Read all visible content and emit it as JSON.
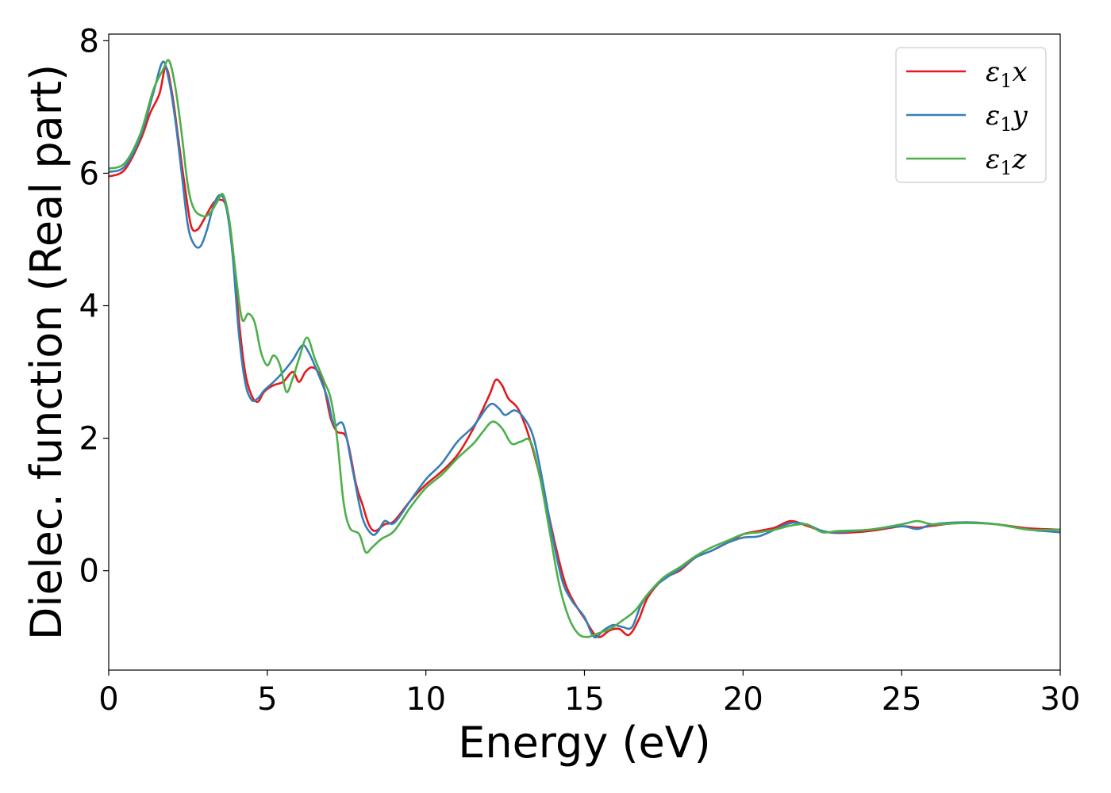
{
  "chart_data": {
    "type": "line",
    "xlabel": "Energy (eV)",
    "ylabel": "Dielec. function (Real part)",
    "xlim": [
      0,
      30
    ],
    "ylim": [
      -1.5,
      8.1
    ],
    "xticks": [
      0,
      5,
      10,
      15,
      20,
      25,
      30
    ],
    "yticks": [
      0,
      2,
      4,
      6,
      8
    ],
    "grid": false,
    "legend_position": "top-right",
    "series": [
      {
        "name": "ε1x",
        "label_parts": [
          "ε",
          "1",
          "x"
        ],
        "color": "#e41a1c",
        "points": [
          [
            0,
            5.95
          ],
          [
            0.5,
            6.05
          ],
          [
            1.0,
            6.5
          ],
          [
            1.3,
            6.9
          ],
          [
            1.6,
            7.2
          ],
          [
            1.8,
            7.6
          ],
          [
            2.0,
            7.2
          ],
          [
            2.2,
            6.5
          ],
          [
            2.4,
            5.8
          ],
          [
            2.6,
            5.2
          ],
          [
            2.8,
            5.15
          ],
          [
            3.0,
            5.3
          ],
          [
            3.3,
            5.55
          ],
          [
            3.5,
            5.6
          ],
          [
            3.7,
            5.5
          ],
          [
            3.9,
            4.9
          ],
          [
            4.1,
            3.8
          ],
          [
            4.3,
            3.0
          ],
          [
            4.5,
            2.65
          ],
          [
            4.7,
            2.55
          ],
          [
            4.9,
            2.7
          ],
          [
            5.2,
            2.8
          ],
          [
            5.5,
            2.85
          ],
          [
            5.8,
            3.0
          ],
          [
            6.0,
            2.85
          ],
          [
            6.2,
            3.0
          ],
          [
            6.4,
            3.07
          ],
          [
            6.6,
            3.0
          ],
          [
            6.8,
            2.75
          ],
          [
            7.0,
            2.3
          ],
          [
            7.2,
            2.1
          ],
          [
            7.5,
            2.0
          ],
          [
            7.8,
            1.3
          ],
          [
            8.0,
            1.0
          ],
          [
            8.2,
            0.7
          ],
          [
            8.4,
            0.6
          ],
          [
            8.7,
            0.7
          ],
          [
            9.0,
            0.75
          ],
          [
            9.5,
            1.05
          ],
          [
            10.0,
            1.3
          ],
          [
            10.5,
            1.5
          ],
          [
            11.0,
            1.75
          ],
          [
            11.5,
            2.15
          ],
          [
            12.0,
            2.65
          ],
          [
            12.2,
            2.88
          ],
          [
            12.4,
            2.8
          ],
          [
            12.6,
            2.6
          ],
          [
            12.9,
            2.45
          ],
          [
            13.2,
            2.1
          ],
          [
            13.5,
            1.6
          ],
          [
            13.8,
            1.0
          ],
          [
            14.1,
            0.35
          ],
          [
            14.4,
            -0.2
          ],
          [
            14.7,
            -0.5
          ],
          [
            15.0,
            -0.72
          ],
          [
            15.3,
            -0.95
          ],
          [
            15.5,
            -1.0
          ],
          [
            15.8,
            -0.9
          ],
          [
            16.1,
            -0.88
          ],
          [
            16.4,
            -0.97
          ],
          [
            16.7,
            -0.75
          ],
          [
            17.0,
            -0.4
          ],
          [
            17.5,
            -0.12
          ],
          [
            18.0,
            0.0
          ],
          [
            18.5,
            0.2
          ],
          [
            19.0,
            0.3
          ],
          [
            19.5,
            0.42
          ],
          [
            20.0,
            0.55
          ],
          [
            20.5,
            0.6
          ],
          [
            21.0,
            0.65
          ],
          [
            21.5,
            0.75
          ],
          [
            22.0,
            0.68
          ],
          [
            22.5,
            0.6
          ],
          [
            23.0,
            0.57
          ],
          [
            24.0,
            0.6
          ],
          [
            25.0,
            0.67
          ],
          [
            25.5,
            0.65
          ],
          [
            26.0,
            0.68
          ],
          [
            27.0,
            0.73
          ],
          [
            28.0,
            0.7
          ],
          [
            29.0,
            0.64
          ],
          [
            30.0,
            0.62
          ]
        ]
      },
      {
        "name": "ε1y",
        "label_parts": [
          "ε",
          "1",
          "y"
        ],
        "color": "#377eb8",
        "points": [
          [
            0,
            6.02
          ],
          [
            0.5,
            6.1
          ],
          [
            1.0,
            6.55
          ],
          [
            1.4,
            7.2
          ],
          [
            1.7,
            7.68
          ],
          [
            1.9,
            7.4
          ],
          [
            2.1,
            6.8
          ],
          [
            2.3,
            6.0
          ],
          [
            2.5,
            5.2
          ],
          [
            2.7,
            4.92
          ],
          [
            2.9,
            4.9
          ],
          [
            3.1,
            5.15
          ],
          [
            3.3,
            5.5
          ],
          [
            3.5,
            5.67
          ],
          [
            3.7,
            5.5
          ],
          [
            3.9,
            4.8
          ],
          [
            4.1,
            3.6
          ],
          [
            4.3,
            2.85
          ],
          [
            4.5,
            2.58
          ],
          [
            4.7,
            2.6
          ],
          [
            4.9,
            2.72
          ],
          [
            5.2,
            2.85
          ],
          [
            5.5,
            3.0
          ],
          [
            5.8,
            3.18
          ],
          [
            6.1,
            3.4
          ],
          [
            6.3,
            3.3
          ],
          [
            6.6,
            2.98
          ],
          [
            6.9,
            2.6
          ],
          [
            7.1,
            2.2
          ],
          [
            7.4,
            2.2
          ],
          [
            7.7,
            1.5
          ],
          [
            8.0,
            0.8
          ],
          [
            8.3,
            0.55
          ],
          [
            8.5,
            0.6
          ],
          [
            8.7,
            0.75
          ],
          [
            9.0,
            0.72
          ],
          [
            9.5,
            1.05
          ],
          [
            10.0,
            1.38
          ],
          [
            10.5,
            1.62
          ],
          [
            11.0,
            1.95
          ],
          [
            11.5,
            2.18
          ],
          [
            11.9,
            2.45
          ],
          [
            12.1,
            2.52
          ],
          [
            12.3,
            2.45
          ],
          [
            12.5,
            2.35
          ],
          [
            12.8,
            2.42
          ],
          [
            13.1,
            2.3
          ],
          [
            13.4,
            2.0
          ],
          [
            13.7,
            1.3
          ],
          [
            14.0,
            0.5
          ],
          [
            14.3,
            -0.15
          ],
          [
            14.6,
            -0.45
          ],
          [
            15.0,
            -0.7
          ],
          [
            15.3,
            -1.0
          ],
          [
            15.6,
            -0.9
          ],
          [
            15.9,
            -0.82
          ],
          [
            16.2,
            -0.85
          ],
          [
            16.5,
            -0.85
          ],
          [
            16.8,
            -0.5
          ],
          [
            17.2,
            -0.25
          ],
          [
            17.6,
            -0.1
          ],
          [
            18.0,
            0.02
          ],
          [
            18.5,
            0.2
          ],
          [
            19.0,
            0.3
          ],
          [
            19.5,
            0.42
          ],
          [
            20.0,
            0.5
          ],
          [
            20.5,
            0.52
          ],
          [
            21.0,
            0.62
          ],
          [
            21.5,
            0.72
          ],
          [
            22.0,
            0.7
          ],
          [
            22.5,
            0.6
          ],
          [
            23.0,
            0.58
          ],
          [
            24.0,
            0.62
          ],
          [
            25.0,
            0.67
          ],
          [
            25.5,
            0.63
          ],
          [
            26.0,
            0.7
          ],
          [
            27.0,
            0.73
          ],
          [
            28.0,
            0.7
          ],
          [
            29.0,
            0.62
          ],
          [
            30.0,
            0.58
          ]
        ]
      },
      {
        "name": "ε1z",
        "label_parts": [
          "ε",
          "1",
          "z"
        ],
        "color": "#4daf4a",
        "points": [
          [
            0,
            6.07
          ],
          [
            0.5,
            6.15
          ],
          [
            1.0,
            6.6
          ],
          [
            1.4,
            7.25
          ],
          [
            1.7,
            7.55
          ],
          [
            1.9,
            7.7
          ],
          [
            2.1,
            7.3
          ],
          [
            2.3,
            6.6
          ],
          [
            2.5,
            5.8
          ],
          [
            2.7,
            5.45
          ],
          [
            3.0,
            5.35
          ],
          [
            3.2,
            5.4
          ],
          [
            3.4,
            5.55
          ],
          [
            3.6,
            5.68
          ],
          [
            3.8,
            5.3
          ],
          [
            4.0,
            4.5
          ],
          [
            4.2,
            3.8
          ],
          [
            4.4,
            3.88
          ],
          [
            4.6,
            3.75
          ],
          [
            4.8,
            3.3
          ],
          [
            5.0,
            3.1
          ],
          [
            5.2,
            3.25
          ],
          [
            5.4,
            3.1
          ],
          [
            5.6,
            2.7
          ],
          [
            5.8,
            2.9
          ],
          [
            6.0,
            3.2
          ],
          [
            6.25,
            3.52
          ],
          [
            6.5,
            3.2
          ],
          [
            6.8,
            2.85
          ],
          [
            7.0,
            2.6
          ],
          [
            7.2,
            2.0
          ],
          [
            7.4,
            1.05
          ],
          [
            7.6,
            0.65
          ],
          [
            7.9,
            0.55
          ],
          [
            8.1,
            0.28
          ],
          [
            8.3,
            0.35
          ],
          [
            8.6,
            0.48
          ],
          [
            9.0,
            0.6
          ],
          [
            9.5,
            0.95
          ],
          [
            10.0,
            1.25
          ],
          [
            10.5,
            1.45
          ],
          [
            11.0,
            1.7
          ],
          [
            11.5,
            1.92
          ],
          [
            11.8,
            2.1
          ],
          [
            12.1,
            2.25
          ],
          [
            12.4,
            2.15
          ],
          [
            12.7,
            1.92
          ],
          [
            13.0,
            1.95
          ],
          [
            13.3,
            1.95
          ],
          [
            13.6,
            1.4
          ],
          [
            13.9,
            0.6
          ],
          [
            14.2,
            -0.2
          ],
          [
            14.5,
            -0.7
          ],
          [
            14.8,
            -0.95
          ],
          [
            15.1,
            -1.0
          ],
          [
            15.4,
            -0.95
          ],
          [
            15.8,
            -0.88
          ],
          [
            16.2,
            -0.75
          ],
          [
            16.6,
            -0.6
          ],
          [
            17.0,
            -0.35
          ],
          [
            17.5,
            -0.1
          ],
          [
            18.0,
            0.05
          ],
          [
            18.5,
            0.22
          ],
          [
            19.0,
            0.35
          ],
          [
            19.5,
            0.45
          ],
          [
            20.0,
            0.55
          ],
          [
            20.5,
            0.58
          ],
          [
            21.0,
            0.62
          ],
          [
            21.5,
            0.68
          ],
          [
            22.0,
            0.7
          ],
          [
            22.5,
            0.58
          ],
          [
            23.0,
            0.6
          ],
          [
            24.0,
            0.62
          ],
          [
            25.0,
            0.7
          ],
          [
            25.5,
            0.75
          ],
          [
            26.0,
            0.7
          ],
          [
            27.0,
            0.72
          ],
          [
            28.0,
            0.7
          ],
          [
            29.0,
            0.62
          ],
          [
            30.0,
            0.62
          ]
        ]
      }
    ]
  }
}
